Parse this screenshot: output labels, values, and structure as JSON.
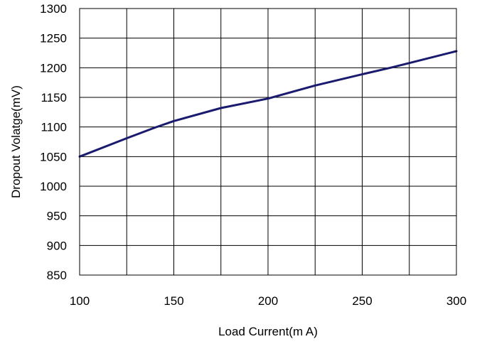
{
  "chart_data": {
    "type": "line",
    "title": "",
    "xlabel": "Load Current(m A)",
    "ylabel": "Dropout Volatge(mV)",
    "xlim": [
      100,
      300
    ],
    "ylim": [
      850,
      1300
    ],
    "x_ticks": [
      100,
      150,
      200,
      250,
      300
    ],
    "y_ticks": [
      850,
      900,
      950,
      1000,
      1050,
      1100,
      1150,
      1200,
      1250,
      1300
    ],
    "x_grid_lines": [
      100,
      125,
      150,
      175,
      200,
      225,
      250,
      275,
      300
    ],
    "grid": true,
    "series": [
      {
        "x": [
          100,
          125,
          140,
          150,
          175,
          200,
          225,
          250,
          265,
          275,
          300
        ],
        "y": [
          1050,
          1081,
          1099,
          1110,
          1132,
          1148,
          1170,
          1189,
          1200,
          1208,
          1228
        ],
        "color": "#1a1a6e"
      }
    ]
  }
}
